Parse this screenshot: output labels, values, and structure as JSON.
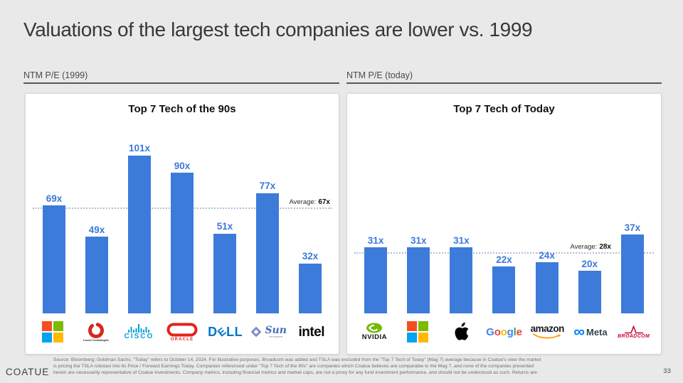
{
  "slide": {
    "title": "Valuations of the largest tech companies are lower vs. 1999",
    "brand": "COATUE",
    "page_number": "33",
    "footnote_lines": [
      "Source: Bloomberg; Goldman Sachs.  \"Today\" refers to October 14, 2024. For illustrative purposes.  Broadcom was added and TSLA was excluded from the \"Top 7 Tech of Today\" (Mag 7) average because in Coatue's view the market",
      "is pricing the TSLA robotaxi into its Price / Forward Earnings Today. Companies referenced under \"Top 7 Tech of the 90s\" are companies which Coatue believes are comparable to the Mag 7, and none of the companies presented",
      "herein are necessarily representative of Coatue investments. Company metrics, including financial metrics and market caps, are not a proxy for any fund investment performance, and should not be understood as such. Returns are"
    ]
  },
  "left_panel": {
    "axis_label": "NTM P/E (1999)"
  },
  "right_panel": {
    "axis_label": "NTM P/E (today)"
  },
  "colors": {
    "bar_blue": "#3D7BDB",
    "value_label_blue": "#3C78DB",
    "average_line": "#AFBDD4",
    "slide_background": "#E9E9E9"
  },
  "chart_data": [
    {
      "type": "bar",
      "title": "Top 7 Tech of the 90s",
      "categories": [
        "Microsoft",
        "Lucent Technologies",
        "Cisco",
        "Oracle",
        "Dell",
        "Sun Microsystems",
        "Intel"
      ],
      "values": [
        69,
        49,
        101,
        90,
        51,
        77,
        32
      ],
      "value_suffix": "x",
      "average": 67,
      "average_label": "Average:",
      "average_value": "67x",
      "ylim": [
        0,
        120
      ],
      "grid": false,
      "bar_color": "#3D7BDB",
      "xlabel": "",
      "ylabel": "NTM P/E (1999)"
    },
    {
      "type": "bar",
      "title": "Top 7 Tech of Today",
      "categories": [
        "NVIDIA",
        "Microsoft",
        "Apple",
        "Google",
        "Amazon",
        "Meta",
        "Broadcom"
      ],
      "values": [
        31,
        31,
        31,
        22,
        24,
        20,
        37
      ],
      "value_suffix": "x",
      "average": 28,
      "average_label": "Average:",
      "average_value": "28x",
      "ylim": [
        0,
        88
      ],
      "grid": false,
      "bar_color": "#3D7BDB",
      "xlabel": "",
      "ylabel": "NTM P/E (today)"
    }
  ]
}
